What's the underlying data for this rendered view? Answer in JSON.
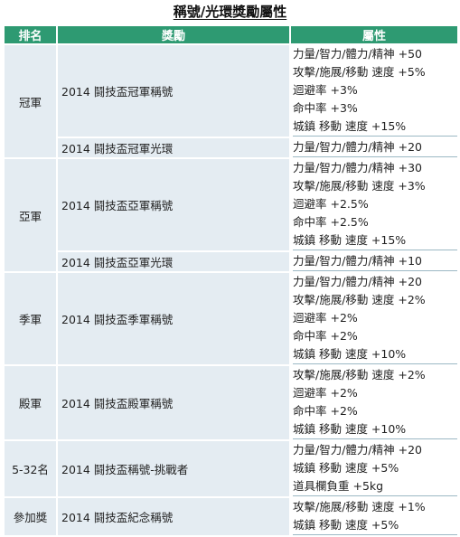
{
  "title": "稱號/光環獎勵屬性",
  "headers": {
    "rank": "排名",
    "reward": "獎勵",
    "attributes": "屬性"
  },
  "rows": [
    {
      "rank": "冠軍",
      "reward": "2014 鬪技盃冠軍稱號",
      "attrs": [
        "力量/智力/體力/精神 +50",
        "攻擊/施展/移動 速度 +5%",
        "迴避率 +3%",
        "命中率 +3%",
        "城鎮 移動 速度 +15%"
      ]
    },
    {
      "reward": "2014 鬪技盃冠軍光環",
      "attrs": [
        "力量/智力/體力/精神 +20"
      ]
    },
    {
      "rank": "亞軍",
      "reward": "2014 鬪技盃亞軍稱號",
      "attrs": [
        "力量/智力/體力/精神 +30",
        "攻擊/施展/移動 速度 +3%",
        "迴避率 +2.5%",
        "命中率 +2.5%",
        "城鎮 移動 速度 +15%"
      ]
    },
    {
      "reward": "2014 鬪技盃亞軍光環",
      "attrs": [
        "力量/智力/體力/精神 +10"
      ]
    },
    {
      "rank": "季軍",
      "reward": "2014 鬪技盃季軍稱號",
      "attrs": [
        "力量/智力/體力/精神 +20",
        "攻擊/施展/移動 速度 +2%",
        "迴避率 +2%",
        "命中率 +2%",
        "城鎮 移動 速度 +10%"
      ]
    },
    {
      "rank": "殿軍",
      "reward": "2014 鬪技盃殿軍稱號",
      "attrs": [
        "攻擊/施展/移動 速度 +2%",
        "迴避率 +2%",
        "命中率 +2%",
        "城鎮 移動 速度 +10%"
      ]
    },
    {
      "rank": "5-32名",
      "reward": "2014 鬪技盃稱號-挑戰者",
      "attrs": [
        "力量/智力/體力/精神 +20",
        "城鎮 移動 速度 +5%",
        "道具欄負重 +5kg"
      ]
    },
    {
      "rank": "參加獎",
      "reward": "2014 鬪技盃紀念稱號",
      "attrs": [
        "攻擊/施展/移動 速度 +1%",
        "城鎮 移動 速度 +5%"
      ]
    }
  ]
}
